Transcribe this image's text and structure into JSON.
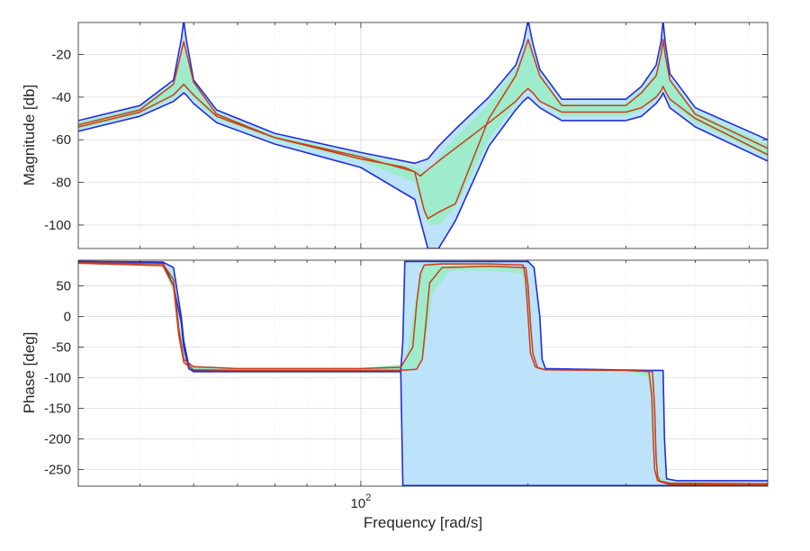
{
  "chart_data": [
    {
      "type": "line",
      "ylabel": "Magnitude [db]",
      "xscale": "log",
      "xlim": [
        31,
        540
      ],
      "ylim": [
        -111,
        -5
      ],
      "grid": true,
      "yticks": [
        -100,
        -80,
        -60,
        -40,
        -20
      ],
      "yticklabels": [
        "-100",
        "-80",
        "-60",
        "-40",
        "-20"
      ],
      "bands": [
        {
          "name": "outer-envelope",
          "fill": "#bde3fb",
          "edge": "#1f2fd6",
          "x": [
            31,
            40,
            46,
            47.5,
            48,
            48.5,
            50,
            55,
            70,
            100,
            125,
            132,
            138,
            148,
            170,
            190,
            196,
            200,
            204,
            210,
            230,
            300,
            320,
            340,
            347,
            350,
            353,
            360,
            400,
            540
          ],
          "upper": [
            -51,
            -44,
            -32,
            -13,
            -4,
            -13,
            -32,
            -46,
            -57,
            -66,
            -71,
            -69,
            -63,
            -55,
            -40,
            -25,
            -15,
            -4,
            -15,
            -27,
            -41,
            -41,
            -35,
            -25,
            -14,
            -4,
            -14,
            -29,
            -45,
            -60
          ],
          "lower": [
            -56,
            -49,
            -42,
            -39,
            -38,
            -39,
            -43,
            -52,
            -62,
            -73,
            -88,
            -111,
            -111,
            -98,
            -63,
            -46,
            -42,
            -40,
            -42,
            -45,
            -51,
            -51,
            -49,
            -43,
            -40,
            -38,
            -40,
            -45,
            -54,
            -70
          ]
        },
        {
          "name": "inner-band",
          "fill": "#9eeccb",
          "edge": "none",
          "x": [
            31,
            40,
            46,
            48,
            50,
            55,
            70,
            100,
            125,
            132,
            138,
            148,
            170,
            190,
            196,
            200,
            204,
            210,
            230,
            300,
            320,
            340,
            347,
            350,
            353,
            360,
            400,
            540
          ],
          "upper": [
            -52,
            -45,
            -33,
            -17,
            -33,
            -47,
            -58,
            -67,
            -73,
            -75,
            -68,
            -59,
            -43,
            -27,
            -19,
            -13,
            -19,
            -29,
            -43,
            -43,
            -37,
            -28,
            -20,
            -14,
            -20,
            -31,
            -47,
            -62
          ],
          "lower": [
            -55,
            -48,
            -40,
            -36,
            -41,
            -50,
            -60,
            -70,
            -80,
            -100,
            -100,
            -92,
            -60,
            -43,
            -38,
            -36,
            -38,
            -42,
            -49,
            -49,
            -46,
            -41,
            -38,
            -36,
            -38,
            -43,
            -52,
            -68
          ]
        }
      ],
      "series": [
        {
          "color": "#cc3b1b",
          "x": [
            31,
            40,
            46,
            48,
            50,
            55,
            70,
            100,
            125,
            130,
            132,
            138,
            148,
            170,
            190,
            196,
            200,
            204,
            210,
            230,
            300,
            320,
            340,
            347,
            350,
            353,
            360,
            400,
            540
          ],
          "y": [
            -53,
            -46,
            -34,
            -14,
            -33,
            -48,
            -59,
            -68,
            -75,
            -93,
            -97,
            -94,
            -90,
            -50,
            -30,
            -20,
            -13,
            -20,
            -30,
            -44,
            -44,
            -38,
            -30,
            -20,
            -13,
            -20,
            -32,
            -48,
            -64
          ]
        },
        {
          "color": "#cc3b1b",
          "x": [
            31,
            40,
            46,
            48,
            50,
            55,
            70,
            100,
            120,
            125,
            128,
            132,
            138,
            148,
            170,
            190,
            196,
            200,
            204,
            210,
            230,
            300,
            320,
            340,
            347,
            350,
            353,
            360,
            400,
            540
          ],
          "y": [
            -54,
            -47,
            -39,
            -34,
            -39,
            -49,
            -59,
            -69,
            -73,
            -75,
            -77,
            -74,
            -70,
            -64,
            -52,
            -42,
            -38,
            -36,
            -38,
            -42,
            -47,
            -47,
            -45,
            -40,
            -37,
            -35,
            -37,
            -41,
            -50,
            -67
          ]
        }
      ]
    },
    {
      "type": "line",
      "ylabel": "Phase [deg]",
      "xlabel": "Frequency [rad/s]",
      "xscale": "log",
      "xlim": [
        31,
        540
      ],
      "ylim": [
        -277,
        92
      ],
      "grid": true,
      "xticks": [
        100
      ],
      "xticklabels": [
        {
          "base": "10",
          "exp": "2"
        }
      ],
      "yticks": [
        -250,
        -200,
        -150,
        -100,
        -50,
        0,
        50
      ],
      "yticklabels": [
        "-250",
        "-200",
        "-150",
        "-100",
        "-50",
        "0",
        "50"
      ],
      "bands": [
        {
          "name": "outer-envelope",
          "fill": "#bde3fb",
          "edge": "#1f2fd6",
          "x": [
            31,
            44,
            46,
            47.5,
            48,
            49,
            50,
            60,
            100,
            118,
            119,
            120,
            200,
            205,
            210,
            212,
            215,
            330,
            340,
            350,
            352,
            355,
            370,
            540
          ],
          "upper": [
            90,
            89,
            80,
            0,
            -40,
            -80,
            -88,
            -89,
            -89,
            -88,
            -40,
            90,
            90,
            80,
            0,
            -70,
            -85,
            -88,
            -88,
            -88,
            -200,
            -265,
            -268,
            -268
          ],
          "lower": [
            90,
            88,
            50,
            -10,
            -50,
            -85,
            -90,
            -90,
            -90,
            -90,
            -276,
            -276,
            -276,
            -276,
            -276,
            -276,
            -276,
            -276,
            -276,
            -276,
            -276,
            -276,
            -276,
            -276
          ]
        },
        {
          "name": "inner-band",
          "fill": "#9eeccb",
          "edge": "none",
          "x": [
            31,
            44,
            46,
            47,
            48,
            49,
            50,
            60,
            100,
            120,
            124,
            127,
            130,
            135,
            145,
            170,
            195,
            200,
            203,
            207,
            215,
            300,
            330,
            335,
            340,
            343,
            346,
            360,
            540
          ],
          "upper": [
            89,
            85,
            70,
            0,
            -50,
            -75,
            -80,
            -84,
            -84,
            -78,
            0,
            60,
            85,
            88,
            88,
            87,
            80,
            40,
            -40,
            -80,
            -87,
            -88,
            -88,
            -100,
            -200,
            -250,
            -262,
            -270,
            -272
          ],
          "lower": [
            88,
            82,
            40,
            -30,
            -70,
            -85,
            -89,
            -89,
            -89,
            -89,
            -85,
            -80,
            -60,
            40,
            75,
            75,
            70,
            10,
            -50,
            -85,
            -88,
            -88,
            -100,
            -150,
            -250,
            -262,
            -270,
            -273,
            -275
          ]
        }
      ],
      "series": [
        {
          "color": "#cc3b1b",
          "x": [
            31,
            44,
            46,
            47,
            48,
            50,
            60,
            100,
            118,
            124,
            126,
            128,
            130,
            140,
            170,
            196,
            198,
            200,
            202,
            206,
            215,
            300,
            330,
            334,
            336,
            338,
            342,
            360,
            540
          ],
          "y": [
            88,
            86,
            60,
            -20,
            -70,
            -82,
            -85,
            -85,
            -83,
            -50,
            20,
            70,
            84,
            86,
            86,
            84,
            60,
            0,
            -60,
            -82,
            -87,
            -88,
            -90,
            -130,
            -200,
            -250,
            -268,
            -272,
            -273
          ]
        },
        {
          "color": "#cc3b1b",
          "x": [
            31,
            44,
            46,
            47,
            48,
            50,
            60,
            100,
            118,
            126,
            129,
            131,
            133,
            140,
            170,
            198,
            200,
            202,
            204,
            208,
            215,
            300,
            335,
            338,
            340,
            342,
            346,
            360,
            540
          ],
          "y": [
            87,
            83,
            50,
            -30,
            -75,
            -87,
            -88,
            -88,
            -88,
            -86,
            -70,
            -10,
            55,
            80,
            82,
            80,
            50,
            -10,
            -60,
            -84,
            -87,
            -88,
            -90,
            -150,
            -230,
            -260,
            -270,
            -274,
            -275
          ]
        }
      ]
    }
  ]
}
